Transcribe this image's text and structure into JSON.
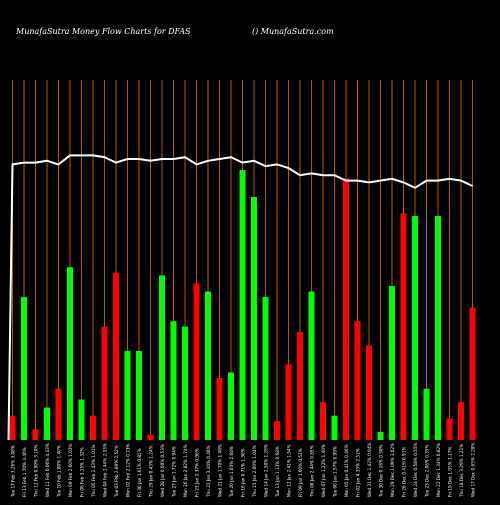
{
  "header": {
    "title": "MunafaSutra  Money Flow  Charts for DFAS",
    "site": "() MunafaSutra.com"
  },
  "colors": {
    "background": "#000000",
    "gridline": "#b35900",
    "up": "#00ff00",
    "down": "#ff0000",
    "line": "#ffffff",
    "text": "#ffffff"
  },
  "chart_data": {
    "type": "bar",
    "title": "",
    "xlabel": "",
    "ylabel": "",
    "ylim": [
      0,
      100
    ],
    "categories": [
      "Tue 17 Feb 2026",
      "Fri 13 Feb 2026",
      "Thu 12 Feb 2026",
      "Wed 11 Feb 2026",
      "Tue 10 Feb 2026",
      "Mon 09 Feb 2026",
      "Fri 06 Feb 2026",
      "Thu 05 Feb 2026",
      "Wed 04 Feb 2026",
      "Tue 03 Feb 2026",
      "Mon 02 Feb 2026",
      "Fri 30 Jan 2026",
      "Thu 29 Jan 2026",
      "Wed 28 Jan 2026",
      "Tue 27 Jan 2026",
      "Mon 26 Jan 2026",
      "Fri 23 Jan 2026",
      "Thu 22 Jan 2026",
      "Wed 21 Jan 2026",
      "Tue 20 Jan 2026",
      "Fri 16 Jan 2026",
      "Thu 15 Jan 2026",
      "Wed 14 Jan 2026",
      "Tue 13 Jan 2026",
      "Mon 12 Jan 2026",
      "Fri 09 Jan 2026",
      "Thu 08 Jan 2026",
      "Wed 07 Jan 2026",
      "Tue 06 Jan 2026",
      "Mon 05 Jan 2026",
      "Fri 02 Jan 2026",
      "Wed 31 Dec 2025",
      "Tue 30 Dec 2025",
      "Mon 29 Dec 2025",
      "Fri 26 Dec 2025",
      "Wed 24 Dec 2025",
      "Tue 23 Dec 2025",
      "Mon 22 Dec 2025",
      "Fri 19 Dec 2025",
      "Thu 18 Dec 2025",
      "Wed 17 Dec 2025"
    ],
    "x_labels": [
      "Tue 17 Feb 3.26% 3.08%",
      "Fri 13 Feb 1.70% 4.46%",
      "Thu 12 Feb 0.99% 3.10%",
      "Wed 11 Feb 0.06% 4.43%",
      "Tue 10 Feb 1.80% 1.40%",
      "Mon 09 Feb 2.60% 1.03%",
      "Fri 06 Feb 3.15% 1.32%",
      "Thu 05 Feb 2.43% 1.01%",
      "Wed 04 Feb 1.44% 2.33%",
      "Tue 03 Feb 2.89% 2.52%",
      "Mon 02 Feb 2.12% 0.73%",
      "Fri 30 Jan 1.61% 0.85%",
      "Thu 29 Jan 0.43% 1.24%",
      "Wed 28 Jan 0.00% 0.53%",
      "Tue 27 Jan 1.72% 0.94%",
      "Mon 26 Jan 2.82% 1.74%",
      "Fri 23 Jan 2.37% 0.36%",
      "Thu 22 Jan 3.10% 0.40%",
      "Wed 21 Jan 1.70% 1.48%",
      "Tue 20 Jan 1.03% 2.68%",
      "Fri 16 Jan 0.71% 1.30%",
      "Thu 15 Jan 2.09% 1.04%",
      "Wed 14 Jan 2.50% 1.26%",
      "Tue 13 Jan 1.13% 0.68%",
      "Mon 12 Jan 2.41% 1.54%",
      "Fri 09 Jan 1.60% 0.52%",
      "Thu 08 Jan 2.44% 0.85%",
      "Wed 07 Jan 1.23% 1.40%",
      "Tue 06 Jan 1.57% 0.99%",
      "Mon 05 Jan 0.41% 0.46%",
      "Fri 02 Jan 4.35% 2.51%",
      "Wed 31 Dec 1.42% 0.94%",
      "Tue 30 Dec 0.18% 0.50%",
      "Mon 29 Dec 1.09% 3.02%",
      "Fri 26 Dec 0.41% 0.91%",
      "Wed 24 Dec 0.58% 0.55%",
      "Tue 23 Dec 2.06% 0.35%",
      "Mon 22 Dec 1.34% 0.82%",
      "Fri 19 Dec 1.05% 1.17%",
      "Thu 18 Dec 3.29% 1.21%",
      "Wed 17 Dec 0.65% 2.28%"
    ],
    "values": [
      9,
      53,
      4,
      12,
      19,
      64,
      15,
      9,
      42,
      62,
      33,
      33,
      2,
      61,
      44,
      42,
      58,
      55,
      23,
      25,
      100,
      90,
      53,
      7,
      28,
      40,
      55,
      14,
      9,
      97,
      44,
      35,
      3,
      57,
      84,
      83,
      19,
      83,
      8,
      14,
      49
    ],
    "bar_colors": [
      "red",
      "green",
      "red",
      "green",
      "red",
      "green",
      "green",
      "red",
      "red",
      "red",
      "green",
      "green",
      "red",
      "green",
      "green",
      "green",
      "red",
      "green",
      "red",
      "green",
      "green",
      "green",
      "green",
      "red",
      "red",
      "red",
      "green",
      "red",
      "green",
      "red",
      "red",
      "red",
      "green",
      "green",
      "red",
      "green",
      "green",
      "green",
      "red",
      "red",
      "red"
    ],
    "line_series": {
      "name": "",
      "values": [
        72,
        73,
        73,
        74,
        72,
        77,
        77,
        77,
        76,
        73,
        75,
        75,
        74,
        75,
        75,
        76,
        72,
        74,
        75,
        76,
        73,
        74,
        71,
        72,
        70,
        66,
        67,
        66,
        66,
        63,
        63,
        62,
        63,
        64,
        62,
        59,
        63,
        63,
        64,
        63,
        60
      ]
    }
  }
}
